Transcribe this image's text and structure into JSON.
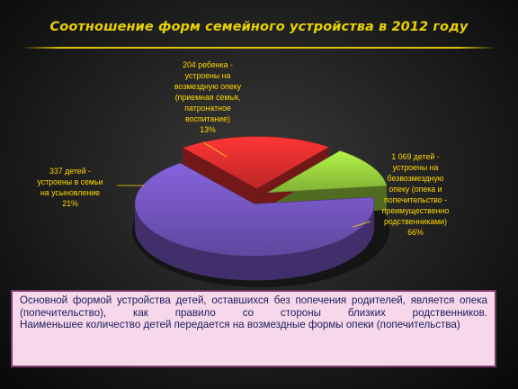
{
  "slide": {
    "title": "Соотношение форм семейного устройства в 2012 году"
  },
  "chart_data": {
    "type": "pie",
    "title": "Соотношение форм семейного устройства в 2012 году",
    "slices": [
      {
        "key": "guardianship",
        "value": 1069,
        "percent": 66,
        "color": "#6b4fb0",
        "label_lines": [
          "1 069 детей -",
          "устроены на",
          "безвозмездную",
          "опеку (опека и",
          "попечительство -",
          "преимущественно",
          "родственниками)",
          "66%"
        ]
      },
      {
        "key": "adoption",
        "value": 337,
        "percent": 21,
        "color": "#d12b2b",
        "label_lines": [
          "337 детей -",
          "устроены в семьи",
          "на усыновление",
          "21%"
        ]
      },
      {
        "key": "paid_guardianship",
        "value": 204,
        "percent": 13,
        "color": "#8fc43a",
        "label_lines": [
          "204 ребенка -",
          "устроены на",
          "возмездную опеку",
          "(приемная семья,",
          "патронатное",
          "воспитание)",
          "13%"
        ]
      }
    ]
  },
  "info": {
    "paragraph1": "Основной формой устройства детей, оставшихся без попечения родителей, является опека (попечительство), как правило со стороны близких родственников.",
    "paragraph2": "Наименьшее количество детей передается на возмездные формы опеки (попечительства)"
  }
}
